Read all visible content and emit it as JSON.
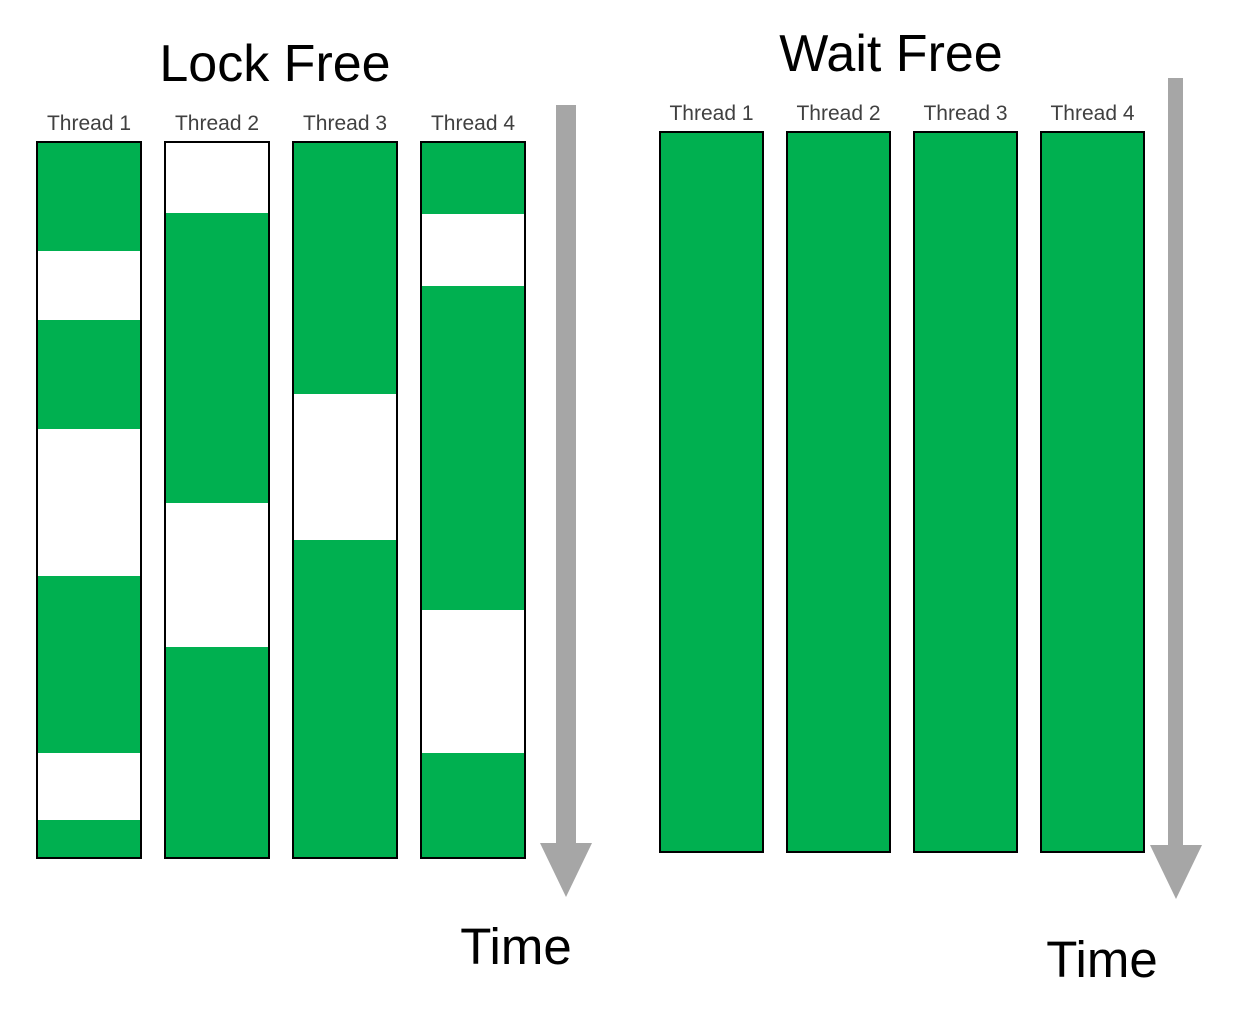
{
  "colors": {
    "running": "#00b050",
    "idle": "#ffffff",
    "arrow": "#a6a6a6",
    "thread_label": "#404040",
    "title": "#000000",
    "bar_border": "#000000"
  },
  "panels": [
    {
      "key": "lock-free",
      "title": "Lock Free",
      "time_label": "Time",
      "threads": [
        {
          "label": "Thread 1",
          "segments": [
            {
              "state": "running",
              "pct": 15.15
            },
            {
              "state": "idle",
              "pct": 9.68
            },
            {
              "state": "running",
              "pct": 15.29
            },
            {
              "state": "idle",
              "pct": 20.48
            },
            {
              "state": "running",
              "pct": 24.82
            },
            {
              "state": "idle",
              "pct": 9.4
            },
            {
              "state": "running",
              "pct": 5.18
            }
          ]
        },
        {
          "label": "Thread 2",
          "segments": [
            {
              "state": "idle",
              "pct": 9.82
            },
            {
              "state": "running",
              "pct": 40.53
            },
            {
              "state": "idle",
              "pct": 20.2
            },
            {
              "state": "running",
              "pct": 29.45
            }
          ]
        },
        {
          "label": "Thread 3",
          "segments": [
            {
              "state": "running",
              "pct": 35.2
            },
            {
              "state": "idle",
              "pct": 20.34
            },
            {
              "state": "running",
              "pct": 44.46
            }
          ]
        },
        {
          "label": "Thread 4",
          "segments": [
            {
              "state": "running",
              "pct": 9.96
            },
            {
              "state": "idle",
              "pct": 10.1
            },
            {
              "state": "running",
              "pct": 45.3
            },
            {
              "state": "idle",
              "pct": 20.06
            },
            {
              "state": "running",
              "pct": 14.58
            }
          ]
        }
      ]
    },
    {
      "key": "wait-free",
      "title": "Wait Free",
      "time_label": "Time",
      "threads": [
        {
          "label": "Thread 1",
          "segments": [
            {
              "state": "running",
              "pct": 100
            }
          ]
        },
        {
          "label": "Thread 2",
          "segments": [
            {
              "state": "running",
              "pct": 100
            }
          ]
        },
        {
          "label": "Thread 3",
          "segments": [
            {
              "state": "running",
              "pct": 100
            }
          ]
        },
        {
          "label": "Thread 4",
          "segments": [
            {
              "state": "running",
              "pct": 100
            }
          ]
        }
      ]
    }
  ]
}
